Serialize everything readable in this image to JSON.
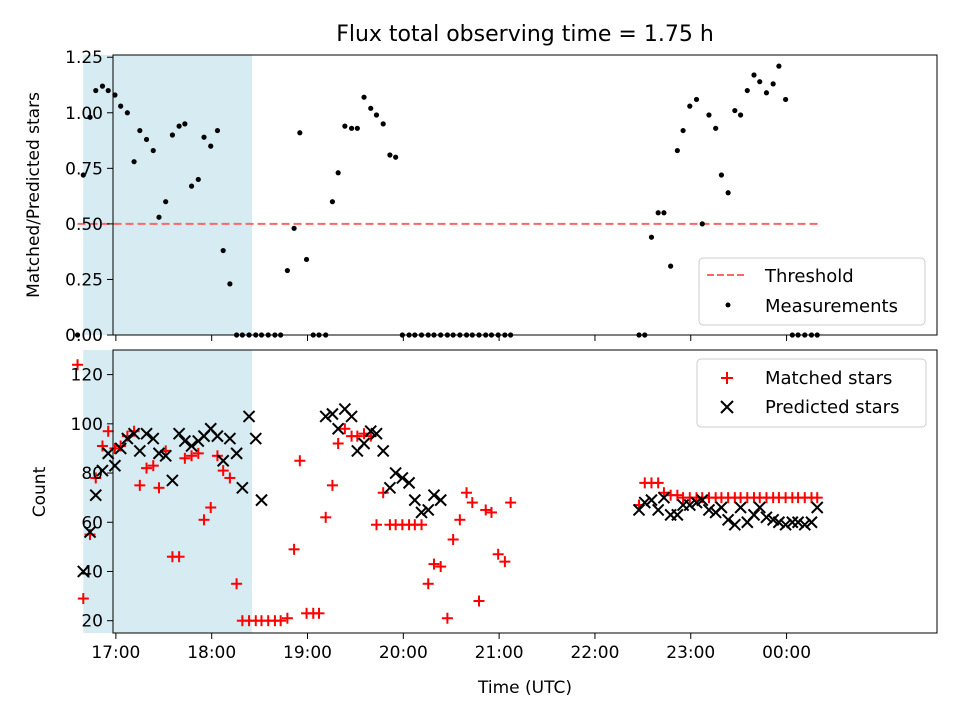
{
  "chart_data": [
    {
      "type": "scatter",
      "title": "Flux total observing time = 1.75 h",
      "xlabel": "",
      "ylabel": "Matched/Predicted stars",
      "ylim": [
        0,
        1.26
      ],
      "yticks": [
        0.0,
        0.25,
        0.5,
        0.75,
        1.0,
        1.25
      ],
      "ytick_labels": [
        "0.00",
        "0.25",
        "0.50",
        "0.75",
        "1.00",
        "1.25"
      ],
      "xlim": [
        16.97,
        25.57
      ],
      "xticks": [
        17,
        18,
        19,
        20,
        21,
        22,
        23,
        24
      ],
      "xtick_labels": [
        "17:00",
        "18:00",
        "19:00",
        "20:00",
        "21:00",
        "22:00",
        "23:00",
        "00:00"
      ],
      "shaded_span": {
        "x_start": 16.66,
        "x_end": 18.42,
        "color": "#add8e6"
      },
      "threshold": {
        "name": "Threshold",
        "value": 0.5,
        "x_start": 16.6,
        "x_end": 24.34,
        "color": "#ff6666",
        "style": "dashed"
      },
      "legend": {
        "placement": "lower-right",
        "entries": [
          "Threshold",
          "Measurements"
        ]
      },
      "series": [
        {
          "name": "Measurements",
          "marker": "dot",
          "color": "#000000",
          "x": [
            16.6,
            16.66,
            16.73,
            16.79,
            16.86,
            16.92,
            16.99,
            17.05,
            17.12,
            17.19,
            17.25,
            17.32,
            17.39,
            17.45,
            17.52,
            17.59,
            17.66,
            17.72,
            17.79,
            17.86,
            17.92,
            17.99,
            18.06,
            18.12,
            18.19,
            18.26,
            18.32,
            18.39,
            18.46,
            18.52,
            18.59,
            18.66,
            18.72,
            18.79,
            18.86,
            18.92,
            18.99,
            19.06,
            19.12,
            19.19,
            19.26,
            19.32,
            19.39,
            19.46,
            19.52,
            19.59,
            19.66,
            19.72,
            19.79,
            19.86,
            19.92,
            19.99,
            20.06,
            20.12,
            20.19,
            20.26,
            20.32,
            20.39,
            20.46,
            20.52,
            20.59,
            20.66,
            20.72,
            20.79,
            20.86,
            20.92,
            20.99,
            21.06,
            21.12,
            22.46,
            22.52,
            22.59,
            22.66,
            22.72,
            22.79,
            22.86,
            22.92,
            22.99,
            23.06,
            23.12,
            23.19,
            23.26,
            23.32,
            23.39,
            23.46,
            23.52,
            23.59,
            23.66,
            23.72,
            23.79,
            23.86,
            23.92,
            23.99,
            24.06,
            24.12,
            24.19,
            24.26,
            24.32
          ],
          "y": [
            0.0,
            0.72,
            0.98,
            1.1,
            1.12,
            1.1,
            1.08,
            1.03,
            1.0,
            0.78,
            0.92,
            0.88,
            0.83,
            0.53,
            0.6,
            0.9,
            0.94,
            0.95,
            0.67,
            0.7,
            0.89,
            0.85,
            0.92,
            0.38,
            0.23,
            0.0,
            0.0,
            0.0,
            0.0,
            0.0,
            0.0,
            0.0,
            0.0,
            0.29,
            0.48,
            0.91,
            0.34,
            0.0,
            0.0,
            0.0,
            0.6,
            0.73,
            0.94,
            0.93,
            0.93,
            1.07,
            1.02,
            0.99,
            0.95,
            0.81,
            0.8,
            0.0,
            0.0,
            0.0,
            0.0,
            0.0,
            0.0,
            0.0,
            0.0,
            0.0,
            0.0,
            0.0,
            0.0,
            0.0,
            0.0,
            0.0,
            0.0,
            0.0,
            0.0,
            0.0,
            0.0,
            0.44,
            0.55,
            0.55,
            0.31,
            0.83,
            0.92,
            1.03,
            1.06,
            0.5,
            0.99,
            0.93,
            0.72,
            0.64,
            1.01,
            0.99,
            1.1,
            1.17,
            1.14,
            1.09,
            1.13,
            1.21,
            1.06,
            0.0,
            0.0,
            0.0,
            0.0,
            0.0
          ]
        }
      ]
    },
    {
      "type": "scatter",
      "title": "",
      "xlabel": "Time (UTC)",
      "ylabel": "Count",
      "ylim": [
        15,
        130
      ],
      "yticks": [
        20,
        40,
        60,
        80,
        100,
        120
      ],
      "ytick_labels": [
        "20",
        "40",
        "60",
        "80",
        "100",
        "120"
      ],
      "xlim": [
        16.97,
        25.57
      ],
      "xticks": [
        17,
        18,
        19,
        20,
        21,
        22,
        23,
        24
      ],
      "xtick_labels": [
        "17:00",
        "18:00",
        "19:00",
        "20:00",
        "21:00",
        "22:00",
        "23:00",
        "00:00"
      ],
      "shaded_span": {
        "x_start": 16.66,
        "x_end": 18.42,
        "color": "#add8e6"
      },
      "legend": {
        "placement": "upper-right",
        "entries": [
          "Matched stars",
          "Predicted stars"
        ]
      },
      "series": [
        {
          "name": "Matched stars",
          "marker": "plus",
          "color": "#ff0000",
          "x": [
            16.6,
            16.66,
            16.73,
            16.79,
            16.86,
            16.92,
            16.99,
            17.05,
            17.12,
            17.19,
            17.25,
            17.32,
            17.39,
            17.45,
            17.52,
            17.59,
            17.66,
            17.72,
            17.79,
            17.86,
            17.92,
            17.99,
            18.06,
            18.12,
            18.19,
            18.26,
            18.32,
            18.39,
            18.46,
            18.52,
            18.59,
            18.66,
            18.72,
            18.79,
            18.86,
            18.92,
            18.99,
            19.06,
            19.12,
            19.19,
            19.26,
            19.32,
            19.39,
            19.46,
            19.52,
            19.59,
            19.66,
            19.72,
            19.79,
            19.86,
            19.92,
            19.99,
            20.06,
            20.12,
            20.19,
            20.26,
            20.32,
            20.39,
            20.46,
            20.52,
            20.59,
            20.66,
            20.72,
            20.79,
            20.86,
            20.92,
            20.99,
            21.06,
            21.12,
            22.46,
            22.52,
            22.59,
            22.66,
            22.72,
            22.79,
            22.86,
            22.92,
            22.99,
            23.06,
            23.12,
            23.19,
            23.26,
            23.32,
            23.39,
            23.46,
            23.52,
            23.59,
            23.66,
            23.72,
            23.79,
            23.86,
            23.92,
            23.99,
            24.06,
            24.12,
            24.19,
            24.26,
            24.32
          ],
          "y": [
            124,
            29,
            55,
            78,
            91,
            97,
            90,
            91,
            95,
            97,
            75,
            82,
            83,
            74,
            89,
            46,
            46,
            86,
            87,
            88,
            61,
            66,
            87,
            81,
            78,
            35,
            20,
            20,
            20,
            20,
            20,
            20,
            20,
            21,
            49,
            85,
            23,
            23,
            23,
            62,
            75,
            92,
            98,
            95,
            95,
            96,
            95,
            59,
            72,
            59,
            59,
            59,
            59,
            59,
            59,
            35,
            43,
            42,
            21,
            53,
            61,
            72,
            68,
            28,
            65,
            64,
            47,
            44,
            68,
            67,
            76,
            76,
            76,
            72,
            71,
            71,
            70,
            70,
            70,
            70,
            70,
            70,
            70,
            70,
            70,
            70,
            70,
            70,
            70,
            70,
            70,
            70,
            70,
            70,
            70,
            70,
            70,
            70
          ]
        },
        {
          "name": "Predicted stars",
          "marker": "x",
          "color": "#000000",
          "x": [
            16.66,
            16.73,
            16.79,
            16.86,
            16.92,
            16.99,
            17.05,
            17.12,
            17.19,
            17.25,
            17.32,
            17.39,
            17.45,
            17.52,
            17.59,
            17.66,
            17.72,
            17.79,
            17.86,
            17.92,
            17.99,
            18.06,
            18.12,
            18.19,
            18.26,
            18.32,
            18.39,
            18.46,
            18.52,
            19.19,
            19.26,
            19.32,
            19.39,
            19.46,
            19.52,
            19.59,
            19.66,
            19.72,
            19.79,
            19.86,
            19.92,
            19.99,
            20.06,
            20.12,
            20.19,
            20.26,
            20.32,
            20.39,
            22.46,
            22.52,
            22.59,
            22.66,
            22.72,
            22.79,
            22.86,
            22.92,
            22.99,
            23.06,
            23.12,
            23.19,
            23.26,
            23.32,
            23.39,
            23.46,
            23.52,
            23.59,
            23.66,
            23.72,
            23.79,
            23.86,
            23.92,
            23.99,
            24.06,
            24.12,
            24.19,
            24.26,
            24.32
          ],
          "y": [
            40,
            56,
            71,
            81,
            88,
            83,
            90,
            94,
            96,
            89,
            96,
            94,
            88,
            87,
            77,
            96,
            93,
            91,
            93,
            95,
            98,
            95,
            85,
            94,
            88,
            74,
            103,
            94,
            69,
            103,
            104,
            98,
            106,
            103,
            89,
            92,
            97,
            96,
            89,
            74,
            80,
            78,
            76,
            69,
            64,
            65,
            71,
            69,
            65,
            68,
            69,
            65,
            70,
            63,
            63,
            67,
            67,
            68,
            69,
            65,
            64,
            66,
            61,
            59,
            66,
            60,
            63,
            66,
            62,
            61,
            60,
            59,
            60,
            60,
            59,
            60,
            66
          ]
        }
      ]
    }
  ]
}
